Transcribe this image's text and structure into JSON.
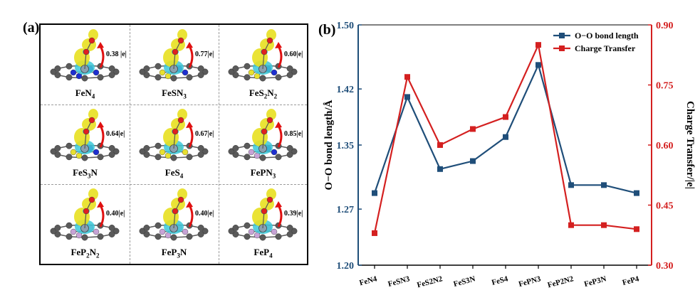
{
  "panel_a": {
    "tag": "(a)",
    "cells": [
      {
        "label": "FeN4",
        "charge": "0.38 |e|",
        "dopant": "N"
      },
      {
        "label": "FeSN3",
        "charge": "0.77|e|",
        "dopant": "SN"
      },
      {
        "label": "FeS2N2",
        "charge": "0.60|e|",
        "dopant": "SN"
      },
      {
        "label": "FeS3N",
        "charge": "0.64|e|",
        "dopant": "SN"
      },
      {
        "label": "FeS4",
        "charge": "0.67|e|",
        "dopant": "S"
      },
      {
        "label": "FePN3",
        "charge": "0.85|e|",
        "dopant": "PN"
      },
      {
        "label": "FeP2N2",
        "charge": "0.40|e|",
        "dopant": "P"
      },
      {
        "label": "FeP3N",
        "charge": "0.40|e|",
        "dopant": "P"
      },
      {
        "label": "FeP4",
        "charge": "0.39|e|",
        "dopant": "P"
      }
    ]
  },
  "chart_data": {
    "type": "line",
    "tag": "(b)",
    "categories": [
      "FeN4",
      "FeSN3",
      "FeS2N2",
      "FeS3N",
      "FeS4",
      "FePN3",
      "FeP2N2",
      "FeP3N",
      "FeP4"
    ],
    "series": [
      {
        "name": "O−O  bond length",
        "axis": "left",
        "color": "#1f4e79",
        "marker": "square",
        "values": [
          1.29,
          1.41,
          1.32,
          1.33,
          1.36,
          1.45,
          1.3,
          1.3,
          1.29
        ]
      },
      {
        "name": "Charge Transfer",
        "axis": "right",
        "color": "#d42020",
        "marker": "square",
        "values": [
          0.38,
          0.77,
          0.6,
          0.64,
          0.67,
          0.85,
          0.4,
          0.4,
          0.39
        ]
      }
    ],
    "ylabel_left": "O−O bond length/Å",
    "ylabel_right": "Charge Transfer/|e|",
    "ylim_left": [
      1.2,
      1.5
    ],
    "ylim_right": [
      0.3,
      0.9
    ],
    "yticks_left": [
      "1.20",
      "1.27",
      "1.35",
      "1.42",
      "1.50"
    ],
    "yticks_right": [
      "0.30",
      "0.45",
      "0.60",
      "0.75",
      "0.90"
    ],
    "legend_position": "top-right",
    "grid": false
  },
  "colors": {
    "left_axis": "#1f4e79",
    "right_axis": "#d42020",
    "isosurface_yellow": "#e8e020",
    "isosurface_cyan": "#3cc8d8",
    "carbon": "#5a5a5a",
    "nitrogen": "#1e2fd0",
    "sulfur": "#e8e030",
    "phosphorus": "#c7a3d6",
    "oxygen": "#e02020",
    "iron": "#8aa0b0",
    "arrow": "#e01010"
  }
}
